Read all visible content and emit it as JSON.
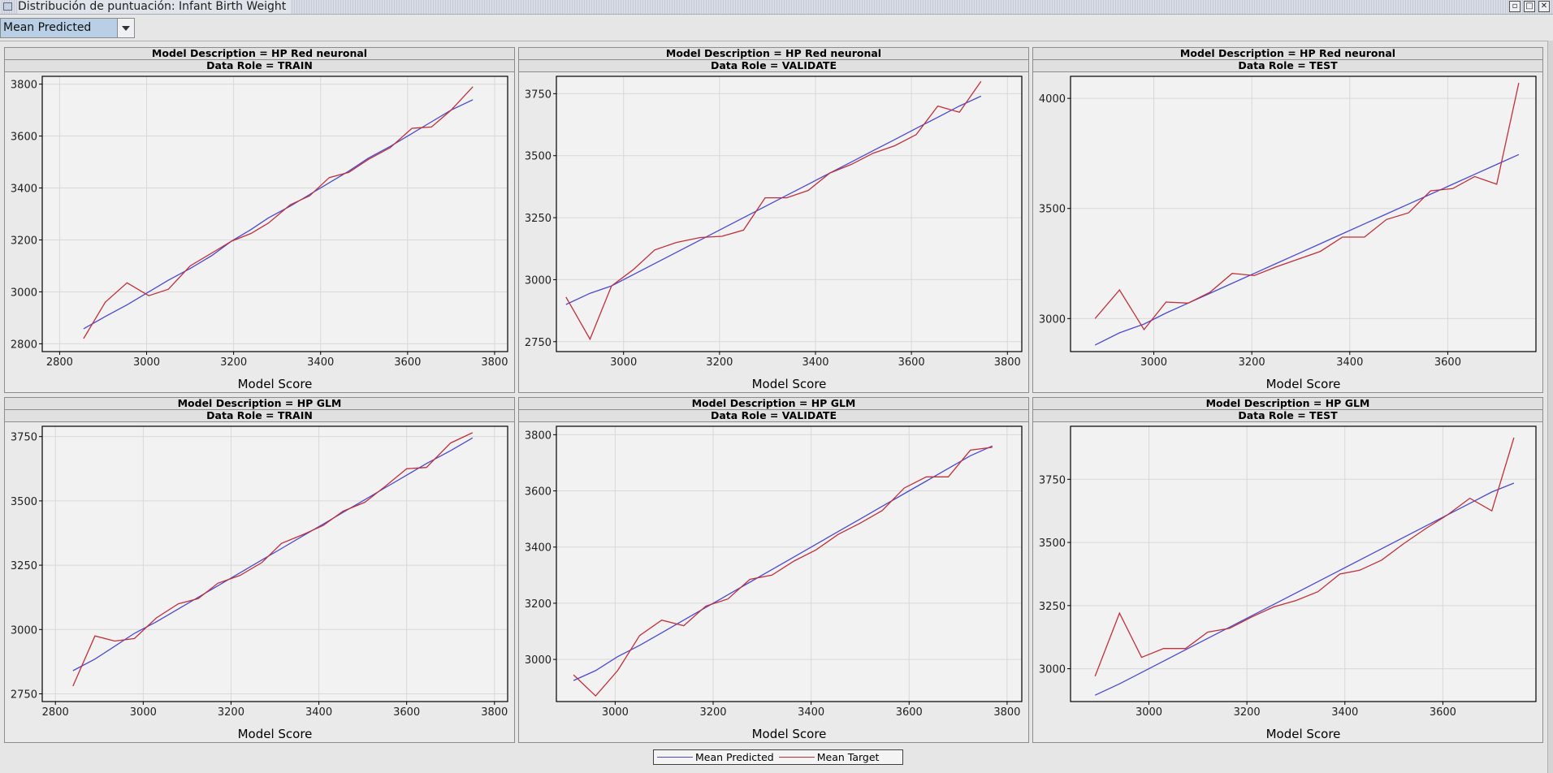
{
  "window": {
    "title": "Distribución de puntuación: Infant Birth Weight"
  },
  "toolbar": {
    "selector_value": "Mean Predicted"
  },
  "colors": {
    "predicted": "#4a4ad0",
    "target": "#c0303a",
    "plot_bg": "#f2f2f2",
    "grid": "#d8d8d8"
  },
  "legend": {
    "items": [
      "Mean Predicted",
      "Mean Target"
    ]
  },
  "chart_data": [
    {
      "type": "line",
      "header1": "Model Description = HP Red neuronal",
      "header2": "Data Role = TRAIN",
      "xlabel": "Model Score",
      "xlim": [
        2760,
        3830
      ],
      "ylim": [
        2770,
        3830
      ],
      "xticks": [
        2800,
        3000,
        3200,
        3400,
        3600,
        3800
      ],
      "yticks": [
        2800,
        3000,
        3200,
        3400,
        3600,
        3800
      ],
      "series": [
        {
          "name": "Mean Predicted",
          "x": [
            2855,
            2905,
            2955,
            3005,
            3050,
            3100,
            3150,
            3195,
            3240,
            3280,
            3330,
            3375,
            3420,
            3465,
            3510,
            3560,
            3610,
            3655,
            3700,
            3750
          ],
          "y": [
            2858,
            2905,
            2950,
            3000,
            3045,
            3090,
            3140,
            3195,
            3240,
            3285,
            3330,
            3375,
            3420,
            3465,
            3515,
            3560,
            3610,
            3655,
            3700,
            3740
          ]
        },
        {
          "name": "Mean Target",
          "x": [
            2855,
            2905,
            2955,
            3005,
            3050,
            3100,
            3150,
            3195,
            3240,
            3280,
            3330,
            3375,
            3420,
            3465,
            3510,
            3560,
            3610,
            3655,
            3700,
            3750
          ],
          "y": [
            2820,
            2960,
            3035,
            2985,
            3010,
            3100,
            3150,
            3195,
            3225,
            3265,
            3335,
            3370,
            3440,
            3460,
            3510,
            3555,
            3630,
            3635,
            3700,
            3790
          ]
        }
      ]
    },
    {
      "type": "line",
      "header1": "Model Description = HP Red neuronal",
      "header2": "Data Role = VALIDATE",
      "xlabel": "Model Score",
      "xlim": [
        2860,
        3830
      ],
      "ylim": [
        2710,
        3820
      ],
      "xticks": [
        3000,
        3200,
        3400,
        3600,
        3800
      ],
      "yticks": [
        2750,
        3000,
        3250,
        3500,
        3750
      ],
      "series": [
        {
          "name": "Mean Predicted",
          "x": [
            2880,
            2930,
            2975,
            3020,
            3065,
            3110,
            3160,
            3205,
            3250,
            3295,
            3340,
            3385,
            3430,
            3475,
            3520,
            3565,
            3610,
            3655,
            3700,
            3745
          ],
          "y": [
            2900,
            2945,
            2975,
            3020,
            3065,
            3110,
            3160,
            3205,
            3250,
            3295,
            3340,
            3385,
            3430,
            3475,
            3520,
            3565,
            3610,
            3655,
            3700,
            3740
          ]
        },
        {
          "name": "Mean Target",
          "x": [
            2880,
            2930,
            2975,
            3020,
            3065,
            3110,
            3160,
            3205,
            3250,
            3295,
            3340,
            3385,
            3430,
            3475,
            3520,
            3565,
            3610,
            3655,
            3700,
            3745
          ],
          "y": [
            2930,
            2760,
            2975,
            3040,
            3120,
            3150,
            3170,
            3175,
            3200,
            3330,
            3330,
            3360,
            3430,
            3465,
            3510,
            3540,
            3585,
            3700,
            3675,
            3800
          ]
        }
      ]
    },
    {
      "type": "line",
      "header1": "Model Description = HP Red neuronal",
      "header2": "Data Role = TEST",
      "xlabel": "Model Score",
      "xlim": [
        2830,
        3780
      ],
      "ylim": [
        2850,
        4100
      ],
      "xticks": [
        3000,
        3200,
        3400,
        3600
      ],
      "yticks": [
        3000,
        3500,
        4000
      ],
      "series": [
        {
          "name": "Mean Predicted",
          "x": [
            2880,
            2930,
            2980,
            3025,
            3070,
            3115,
            3160,
            3205,
            3250,
            3295,
            3340,
            3385,
            3430,
            3475,
            3520,
            3565,
            3610,
            3655,
            3700,
            3745
          ],
          "y": [
            2880,
            2935,
            2975,
            3025,
            3070,
            3115,
            3160,
            3205,
            3250,
            3295,
            3340,
            3385,
            3430,
            3475,
            3520,
            3565,
            3610,
            3655,
            3700,
            3745
          ]
        },
        {
          "name": "Mean Target",
          "x": [
            2880,
            2930,
            2980,
            3025,
            3070,
            3115,
            3160,
            3205,
            3250,
            3295,
            3340,
            3385,
            3430,
            3475,
            3520,
            3565,
            3610,
            3655,
            3700,
            3745
          ],
          "y": [
            3000,
            3130,
            2950,
            3075,
            3070,
            3120,
            3205,
            3195,
            3235,
            3270,
            3305,
            3370,
            3370,
            3450,
            3480,
            3580,
            3590,
            3645,
            3610,
            4070
          ]
        }
      ]
    },
    {
      "type": "line",
      "header1": "Model Description = HP GLM",
      "header2": "Data Role = TRAIN",
      "xlabel": "Model Score",
      "xlim": [
        2770,
        3830
      ],
      "ylim": [
        2720,
        3790
      ],
      "xticks": [
        2800,
        3000,
        3200,
        3400,
        3600,
        3800
      ],
      "yticks": [
        2750,
        3000,
        3250,
        3500,
        3750
      ],
      "series": [
        {
          "name": "Mean Predicted",
          "x": [
            2840,
            2890,
            2935,
            2980,
            3030,
            3080,
            3125,
            3170,
            3220,
            3270,
            3315,
            3365,
            3410,
            3455,
            3505,
            3550,
            3600,
            3645,
            3700,
            3750
          ],
          "y": [
            2840,
            2885,
            2935,
            2985,
            3030,
            3080,
            3125,
            3170,
            3220,
            3270,
            3315,
            3365,
            3410,
            3455,
            3505,
            3550,
            3600,
            3645,
            3695,
            3745
          ]
        },
        {
          "name": "Mean Target",
          "x": [
            2840,
            2890,
            2935,
            2980,
            3030,
            3080,
            3125,
            3170,
            3220,
            3270,
            3315,
            3365,
            3410,
            3455,
            3505,
            3550,
            3600,
            3645,
            3700,
            3750
          ],
          "y": [
            2780,
            2975,
            2955,
            2965,
            3045,
            3100,
            3120,
            3180,
            3210,
            3260,
            3335,
            3370,
            3405,
            3460,
            3495,
            3555,
            3625,
            3630,
            3725,
            3765
          ]
        }
      ]
    },
    {
      "type": "line",
      "header1": "Model Description = HP GLM",
      "header2": "Data Role = VALIDATE",
      "xlabel": "Model Score",
      "xlim": [
        2880,
        3830
      ],
      "ylim": [
        2850,
        3830
      ],
      "xticks": [
        3000,
        3200,
        3400,
        3600,
        3800
      ],
      "yticks": [
        3000,
        3200,
        3400,
        3600,
        3800
      ],
      "series": [
        {
          "name": "Mean Predicted",
          "x": [
            2915,
            2960,
            3005,
            3050,
            3095,
            3140,
            3185,
            3230,
            3275,
            3320,
            3365,
            3410,
            3455,
            3500,
            3545,
            3590,
            3635,
            3680,
            3725,
            3770
          ],
          "y": [
            2925,
            2960,
            3010,
            3050,
            3095,
            3140,
            3185,
            3230,
            3275,
            3320,
            3365,
            3410,
            3455,
            3500,
            3545,
            3590,
            3635,
            3680,
            3725,
            3760
          ]
        },
        {
          "name": "Mean Target",
          "x": [
            2915,
            2960,
            3005,
            3050,
            3095,
            3140,
            3185,
            3230,
            3275,
            3320,
            3365,
            3410,
            3455,
            3500,
            3545,
            3590,
            3635,
            3680,
            3725,
            3770
          ],
          "y": [
            2945,
            2870,
            2960,
            3085,
            3140,
            3120,
            3190,
            3215,
            3285,
            3300,
            3350,
            3390,
            3445,
            3485,
            3530,
            3610,
            3650,
            3650,
            3745,
            3755
          ]
        }
      ]
    },
    {
      "type": "line",
      "header1": "Model Description = HP GLM",
      "header2": "Data Role = TEST",
      "xlabel": "Model Score",
      "xlim": [
        2840,
        3790
      ],
      "ylim": [
        2870,
        3960
      ],
      "xticks": [
        3000,
        3200,
        3400,
        3600
      ],
      "yticks": [
        3000,
        3250,
        3500,
        3750
      ],
      "series": [
        {
          "name": "Mean Predicted",
          "x": [
            2890,
            2940,
            2985,
            3030,
            3075,
            3120,
            3165,
            3210,
            3255,
            3300,
            3345,
            3390,
            3430,
            3475,
            3520,
            3565,
            3610,
            3655,
            3700,
            3745
          ],
          "y": [
            2895,
            2940,
            2985,
            3030,
            3075,
            3120,
            3165,
            3210,
            3255,
            3300,
            3345,
            3390,
            3430,
            3475,
            3520,
            3565,
            3610,
            3655,
            3700,
            3735
          ]
        },
        {
          "name": "Mean Target",
          "x": [
            2890,
            2940,
            2985,
            3030,
            3075,
            3120,
            3165,
            3210,
            3255,
            3300,
            3345,
            3390,
            3430,
            3475,
            3520,
            3565,
            3610,
            3655,
            3700,
            3745
          ],
          "y": [
            2970,
            3220,
            3045,
            3080,
            3080,
            3145,
            3160,
            3205,
            3245,
            3270,
            3305,
            3375,
            3390,
            3430,
            3495,
            3555,
            3610,
            3675,
            3625,
            3915
          ]
        }
      ]
    }
  ]
}
